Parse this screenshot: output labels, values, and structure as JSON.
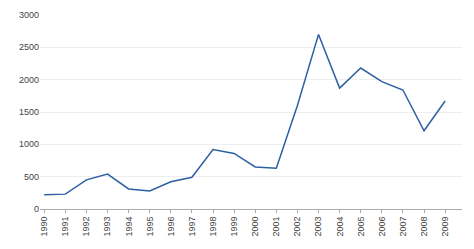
{
  "chart_data": {
    "type": "line",
    "x": [
      1990,
      1991,
      1992,
      1993,
      1994,
      1995,
      1996,
      1997,
      1998,
      1999,
      2000,
      2001,
      2002,
      2003,
      2004,
      2005,
      2006,
      2007,
      2008,
      2009
    ],
    "values": [
      220,
      230,
      450,
      540,
      310,
      280,
      420,
      490,
      920,
      860,
      650,
      630,
      1600,
      2700,
      1870,
      2180,
      1970,
      1840,
      1210,
      1670
    ],
    "color": "#2d5fa3",
    "xlim": [
      1989.8,
      2009.8
    ],
    "xticks": [
      1990,
      1991,
      1992,
      1993,
      1994,
      1995,
      1996,
      1997,
      1998,
      1999,
      2000,
      2001,
      2002,
      2003,
      2004,
      2005,
      2006,
      2007,
      2008,
      2009
    ],
    "ylim": [
      0,
      3000
    ],
    "yticks": [
      0,
      500,
      1000,
      1500,
      2000,
      2500,
      3000
    ],
    "grid": true
  }
}
